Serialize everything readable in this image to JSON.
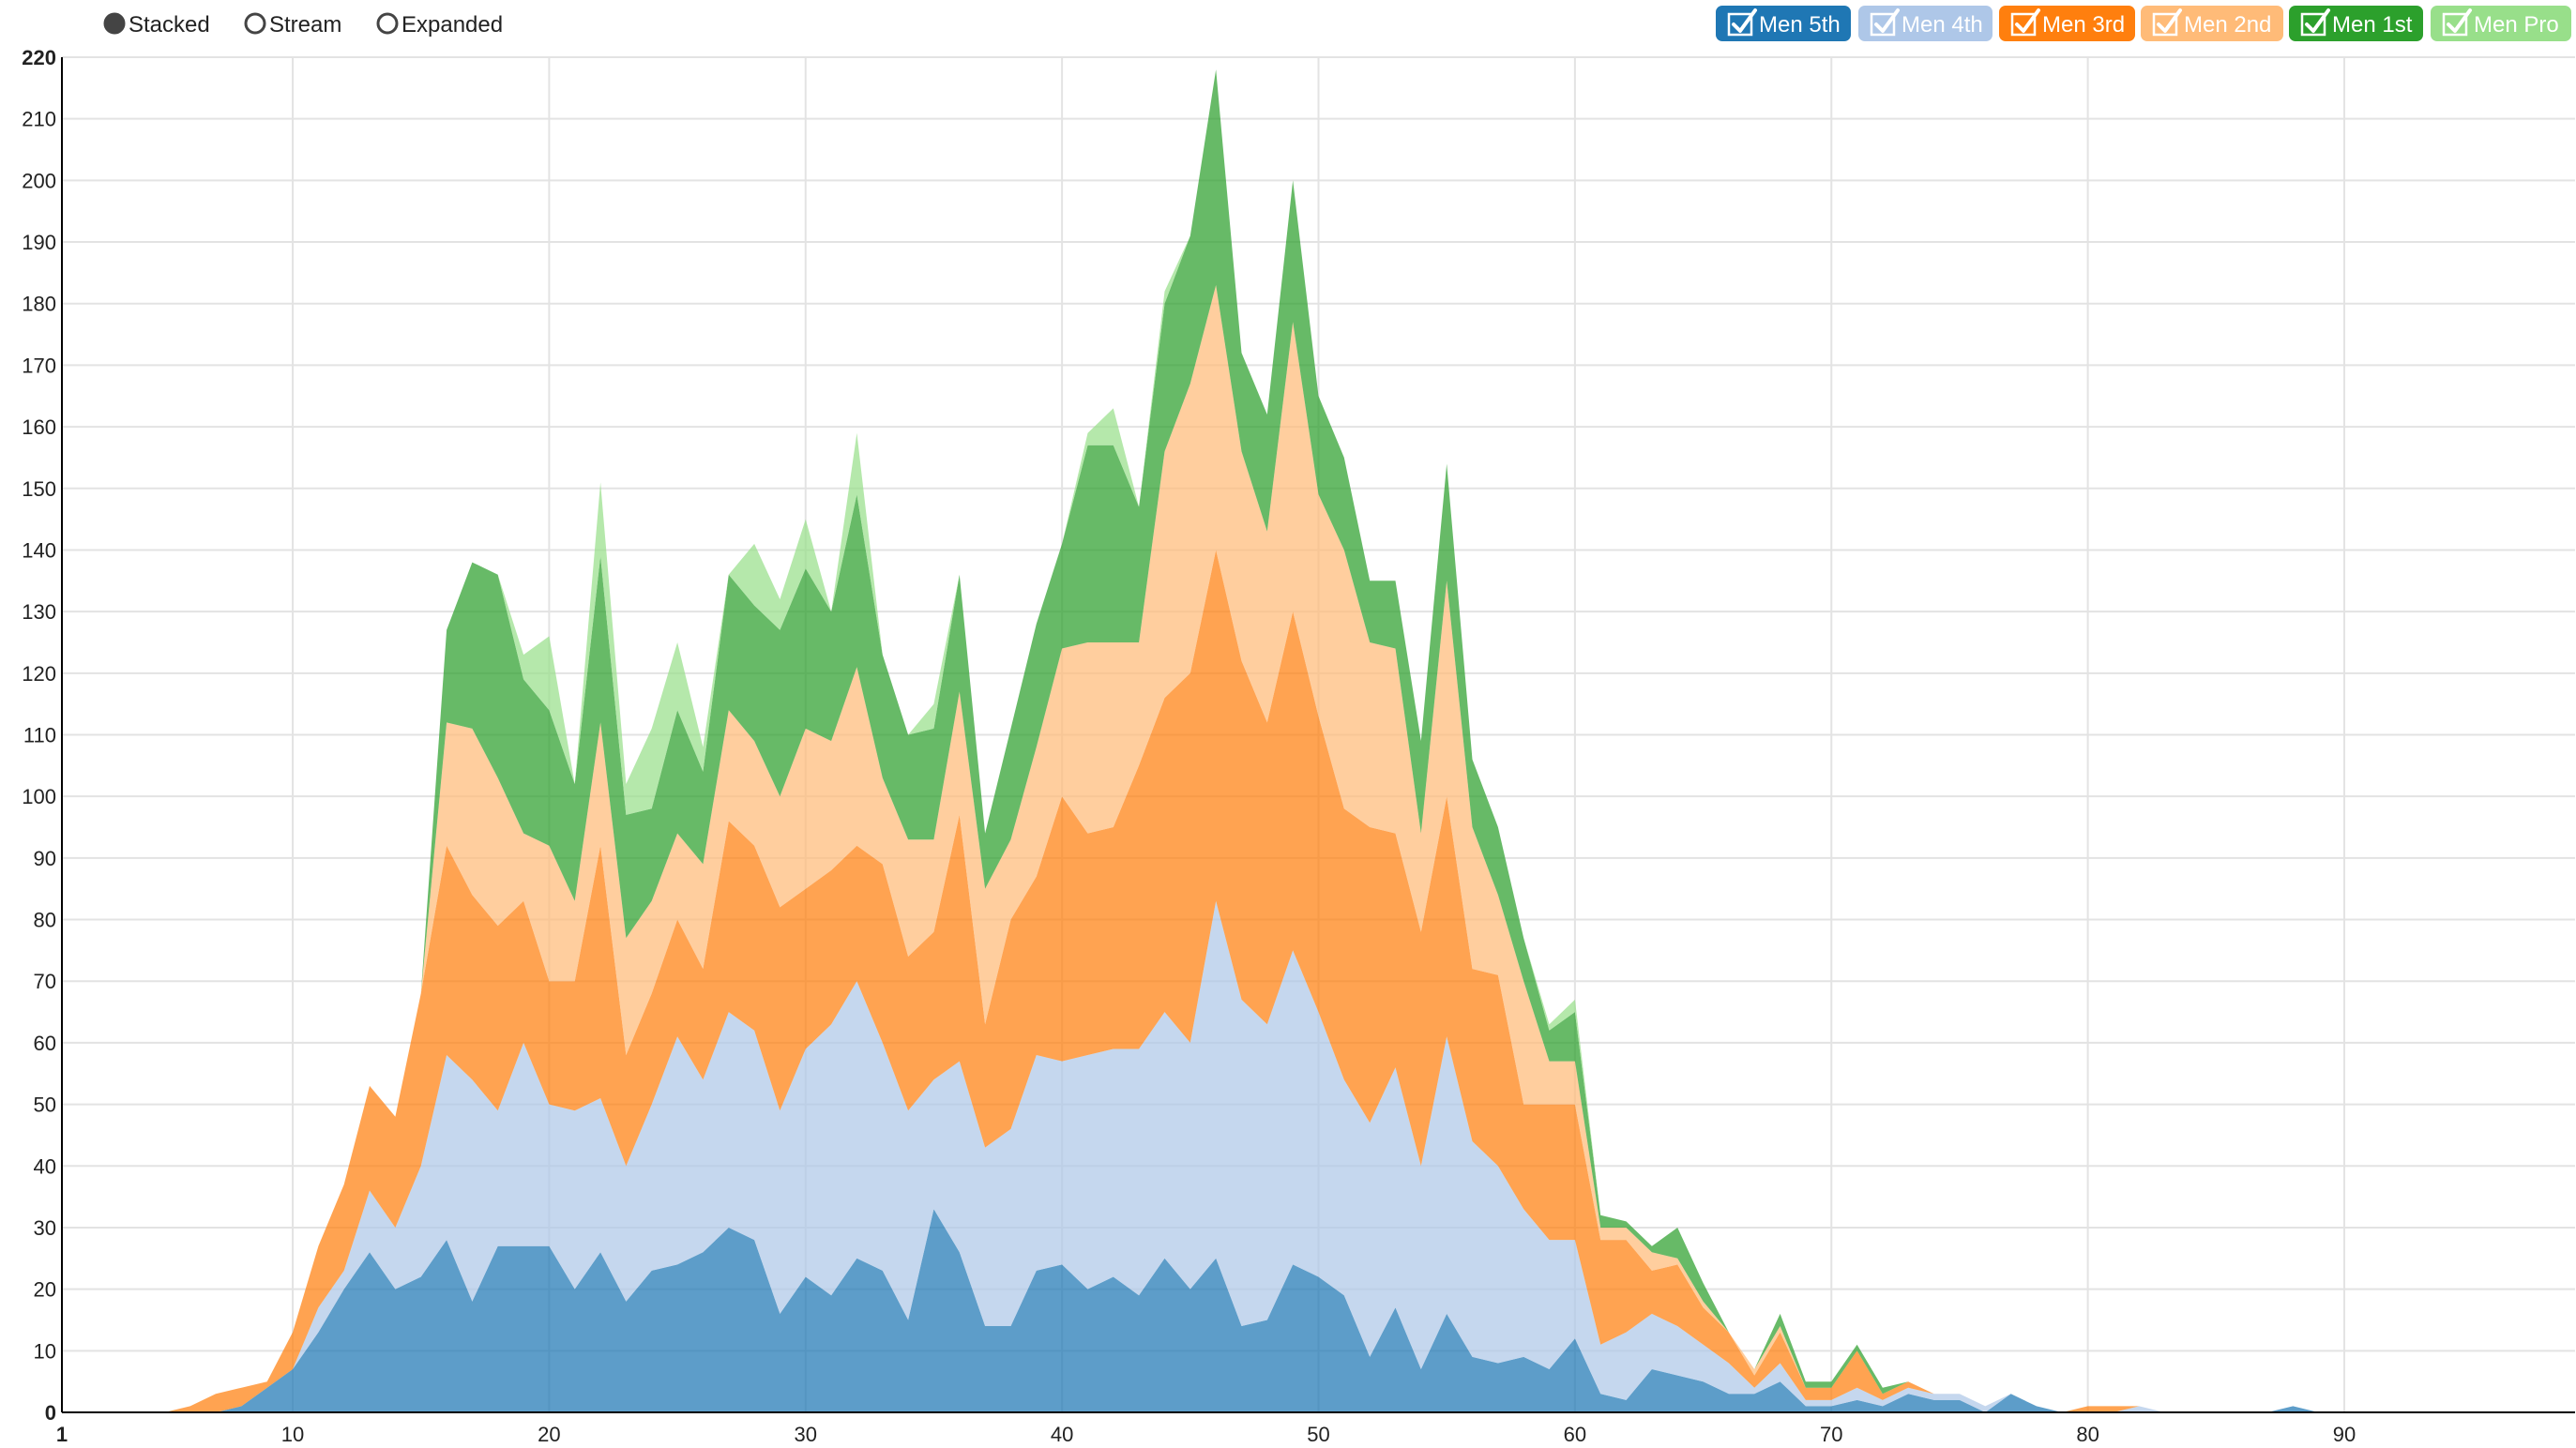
{
  "controls": {
    "options": [
      "Stacked",
      "Stream",
      "Expanded"
    ],
    "selected": "Stacked"
  },
  "chart_data": {
    "type": "area",
    "stacked": true,
    "xlim": [
      1,
      99
    ],
    "ylim": [
      0,
      220
    ],
    "x_ticks": [
      1,
      10,
      20,
      30,
      40,
      50,
      60,
      70,
      80,
      90
    ],
    "y_ticks": [
      0,
      10,
      20,
      30,
      40,
      50,
      60,
      70,
      80,
      90,
      100,
      110,
      120,
      130,
      140,
      150,
      160,
      170,
      180,
      190,
      200,
      210,
      220
    ],
    "grid": true,
    "legend_position": "top-right",
    "x": [
      1,
      2,
      3,
      4,
      5,
      6,
      7,
      8,
      9,
      10,
      11,
      12,
      13,
      14,
      15,
      16,
      17,
      18,
      19,
      20,
      21,
      22,
      23,
      24,
      25,
      26,
      27,
      28,
      29,
      30,
      31,
      32,
      33,
      34,
      35,
      36,
      37,
      38,
      39,
      40,
      41,
      42,
      43,
      44,
      45,
      46,
      47,
      48,
      49,
      50,
      51,
      52,
      53,
      54,
      55,
      56,
      57,
      58,
      59,
      60,
      61,
      62,
      63,
      64,
      65,
      66,
      67,
      68,
      69,
      70,
      71,
      72,
      73,
      74,
      75,
      76,
      77,
      78,
      79,
      80,
      81,
      82,
      83,
      84,
      85,
      86,
      87,
      88,
      89,
      90,
      91,
      92,
      93,
      94,
      95,
      96,
      97,
      98,
      99
    ],
    "series": [
      {
        "name": "Men 5th",
        "color": "#1f77b4",
        "values": [
          0,
          0,
          0,
          0,
          0,
          0,
          0,
          1,
          4,
          7,
          13,
          20,
          26,
          20,
          22,
          28,
          18,
          27,
          27,
          27,
          20,
          26,
          18,
          23,
          24,
          26,
          30,
          28,
          16,
          22,
          19,
          25,
          23,
          15,
          33,
          26,
          14,
          14,
          23,
          24,
          20,
          22,
          19,
          25,
          20,
          25,
          14,
          15,
          24,
          22,
          19,
          9,
          17,
          7,
          16,
          9,
          8,
          9,
          7,
          12,
          3,
          2,
          7,
          6,
          5,
          3,
          3,
          5,
          1,
          1,
          2,
          1,
          3,
          2,
          2,
          0,
          3,
          1,
          0,
          0,
          0,
          0,
          0,
          0,
          0,
          0,
          0,
          1,
          0,
          0,
          0,
          0,
          0,
          0,
          0,
          0,
          0,
          0,
          0
        ]
      },
      {
        "name": "Men 4th",
        "color": "#aec7e8",
        "values": [
          0,
          0,
          0,
          0,
          0,
          0,
          0,
          0,
          0,
          0,
          4,
          3,
          10,
          10,
          18,
          30,
          36,
          22,
          33,
          23,
          29,
          25,
          22,
          27,
          37,
          28,
          35,
          34,
          33,
          37,
          44,
          45,
          37,
          34,
          21,
          31,
          29,
          32,
          35,
          33,
          38,
          37,
          40,
          40,
          40,
          58,
          53,
          48,
          51,
          43,
          35,
          38,
          39,
          33,
          45,
          35,
          32,
          24,
          21,
          16,
          8,
          11,
          9,
          8,
          6,
          5,
          1,
          3,
          1,
          1,
          2,
          1,
          1,
          1,
          1,
          1,
          0,
          0,
          0,
          0,
          0,
          1,
          0,
          0,
          0,
          0,
          0,
          0,
          0,
          0,
          0,
          0,
          0,
          0,
          0,
          0,
          0,
          0,
          0
        ]
      },
      {
        "name": "Men 3rd",
        "color": "#ff7f0e",
        "values": [
          0,
          0,
          0,
          0,
          0,
          1,
          3,
          3,
          1,
          6,
          10,
          14,
          17,
          18,
          28,
          34,
          30,
          30,
          23,
          20,
          21,
          41,
          18,
          18,
          19,
          18,
          31,
          30,
          33,
          26,
          25,
          22,
          29,
          25,
          24,
          40,
          20,
          34,
          29,
          43,
          36,
          36,
          46,
          51,
          60,
          57,
          55,
          49,
          55,
          48,
          44,
          48,
          38,
          38,
          39,
          28,
          31,
          17,
          22,
          22,
          17,
          15,
          7,
          10,
          6,
          5,
          2,
          5,
          2,
          2,
          6,
          1,
          1,
          0,
          0,
          0,
          0,
          0,
          0,
          1,
          1,
          0,
          0,
          0,
          0,
          0,
          0,
          0,
          0,
          0,
          0,
          0,
          0,
          0,
          0,
          0,
          0,
          0,
          0
        ]
      },
      {
        "name": "Men 2nd",
        "color": "#ffbb78",
        "values": [
          0,
          0,
          0,
          0,
          0,
          0,
          0,
          0,
          0,
          0,
          0,
          0,
          0,
          0,
          0,
          20,
          27,
          24,
          11,
          22,
          13,
          20,
          19,
          15,
          14,
          17,
          18,
          17,
          18,
          26,
          21,
          29,
          14,
          19,
          15,
          20,
          22,
          13,
          21,
          24,
          31,
          30,
          20,
          40,
          47,
          43,
          34,
          31,
          47,
          36,
          42,
          30,
          30,
          16,
          35,
          23,
          13,
          20,
          7,
          7,
          2,
          2,
          3,
          1,
          1,
          0,
          1,
          1,
          0,
          0,
          0,
          0,
          0,
          0,
          0,
          0,
          0,
          0,
          0,
          0,
          0,
          0,
          0,
          0,
          0,
          0,
          0,
          0,
          0,
          0,
          0,
          0,
          0,
          0,
          0,
          0,
          0,
          0,
          0
        ]
      },
      {
        "name": "Men 1st",
        "color": "#2ca02c",
        "values": [
          0,
          0,
          0,
          0,
          0,
          0,
          0,
          0,
          0,
          0,
          0,
          0,
          0,
          0,
          0,
          15,
          27,
          33,
          25,
          22,
          19,
          27,
          20,
          15,
          20,
          15,
          22,
          22,
          27,
          26,
          21,
          28,
          20,
          17,
          18,
          19,
          9,
          18,
          20,
          17,
          32,
          32,
          22,
          24,
          24,
          35,
          16,
          19,
          23,
          16,
          15,
          10,
          11,
          15,
          19,
          11,
          11,
          7,
          5,
          8,
          2,
          1,
          1,
          5,
          3,
          0,
          0,
          2,
          1,
          1,
          1,
          1,
          0,
          0,
          0,
          0,
          0,
          0,
          0,
          0,
          0,
          0,
          0,
          0,
          0,
          0,
          0,
          0,
          0,
          0,
          0,
          0,
          0,
          0,
          0,
          0,
          0,
          0,
          0
        ]
      },
      {
        "name": "Men Pro",
        "color": "#98df8a",
        "values": [
          0,
          0,
          0,
          0,
          0,
          0,
          0,
          0,
          0,
          0,
          0,
          0,
          0,
          0,
          0,
          0,
          0,
          0,
          4,
          12,
          0,
          12,
          5,
          13,
          11,
          4,
          0,
          10,
          5,
          8,
          0,
          10,
          0,
          0,
          4,
          0,
          0,
          0,
          0,
          0,
          2,
          6,
          0,
          2,
          0,
          0,
          0,
          0,
          0,
          0,
          0,
          0,
          0,
          0,
          0,
          0,
          0,
          0,
          1,
          2,
          0,
          0,
          0,
          0,
          0,
          0,
          0,
          0,
          0,
          0,
          0,
          0,
          0,
          0,
          0,
          0,
          0,
          0,
          0,
          0,
          0,
          0,
          0,
          0,
          0,
          0,
          0,
          0,
          0,
          0,
          0,
          0,
          0,
          0,
          0,
          0,
          0,
          0,
          0
        ]
      }
    ]
  },
  "legend": {
    "items": [
      {
        "label": "Men 5th",
        "color": "#1f77b4",
        "checked": true
      },
      {
        "label": "Men 4th",
        "color": "#aec7e8",
        "checked": true
      },
      {
        "label": "Men 3rd",
        "color": "#ff7f0e",
        "checked": true
      },
      {
        "label": "Men 2nd",
        "color": "#ffbb78",
        "checked": true
      },
      {
        "label": "Men 1st",
        "color": "#2ca02c",
        "checked": true
      },
      {
        "label": "Men Pro",
        "color": "#98df8a",
        "checked": true
      }
    ]
  }
}
